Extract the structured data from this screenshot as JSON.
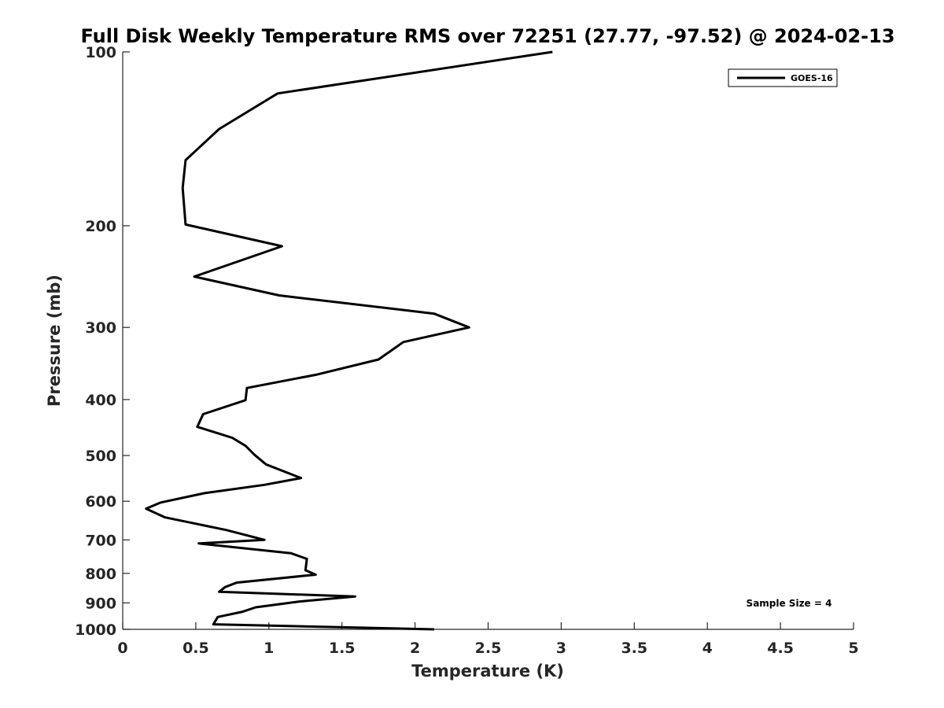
{
  "chart_data": {
    "type": "line",
    "title": "Full Disk Weekly Temperature RMS over 72251 (27.77, -97.52) @ 2024-02-13",
    "xlabel": "Temperature (K)",
    "ylabel": "Pressure (mb)",
    "xlim": [
      0,
      5
    ],
    "ylim": [
      100,
      1000
    ],
    "yscale": "log",
    "y_reversed": true,
    "xticks": [
      "0",
      "0.5",
      "1",
      "1.5",
      "2",
      "2.5",
      "3",
      "3.5",
      "4",
      "4.5",
      "5"
    ],
    "xtick_values": [
      0,
      0.5,
      1,
      1.5,
      2,
      2.5,
      3,
      3.5,
      4,
      4.5,
      5
    ],
    "yticks": [
      "100",
      "200",
      "300",
      "400",
      "500",
      "600",
      "700",
      "800",
      "900",
      "1000"
    ],
    "ytick_values": [
      100,
      200,
      300,
      400,
      500,
      600,
      700,
      800,
      900,
      1000
    ],
    "grid": false,
    "legend_position": "top-right",
    "annotation": "Sample Size = 4",
    "series": [
      {
        "name": "GOES-16",
        "color": "#000000",
        "points": [
          [
            2.94,
            100
          ],
          [
            1.06,
            118
          ],
          [
            0.66,
            136
          ],
          [
            0.43,
            154
          ],
          [
            0.41,
            172
          ],
          [
            0.43,
            199
          ],
          [
            1.09,
            217
          ],
          [
            0.49,
            245
          ],
          [
            1.07,
            264
          ],
          [
            2.13,
            284
          ],
          [
            2.37,
            300
          ],
          [
            1.92,
            318
          ],
          [
            1.75,
            341
          ],
          [
            1.33,
            362
          ],
          [
            0.85,
            382
          ],
          [
            0.84,
            401
          ],
          [
            0.55,
            424
          ],
          [
            0.51,
            446
          ],
          [
            0.75,
            466
          ],
          [
            0.84,
            481
          ],
          [
            0.9,
            498
          ],
          [
            0.98,
            518
          ],
          [
            1.22,
            547
          ],
          [
            0.97,
            562
          ],
          [
            0.56,
            581
          ],
          [
            0.26,
            603
          ],
          [
            0.16,
            618
          ],
          [
            0.29,
            640
          ],
          [
            0.71,
            673
          ],
          [
            0.97,
            700
          ],
          [
            0.52,
            710
          ],
          [
            1.15,
            738
          ],
          [
            1.26,
            755
          ],
          [
            1.25,
            790
          ],
          [
            1.32,
            804
          ],
          [
            0.78,
            830
          ],
          [
            0.7,
            845
          ],
          [
            0.66,
            861
          ],
          [
            1.59,
            877
          ],
          [
            1.21,
            895
          ],
          [
            0.91,
            916
          ],
          [
            0.82,
            932
          ],
          [
            0.65,
            952
          ],
          [
            0.62,
            980
          ],
          [
            2.13,
            1000
          ]
        ]
      }
    ]
  }
}
